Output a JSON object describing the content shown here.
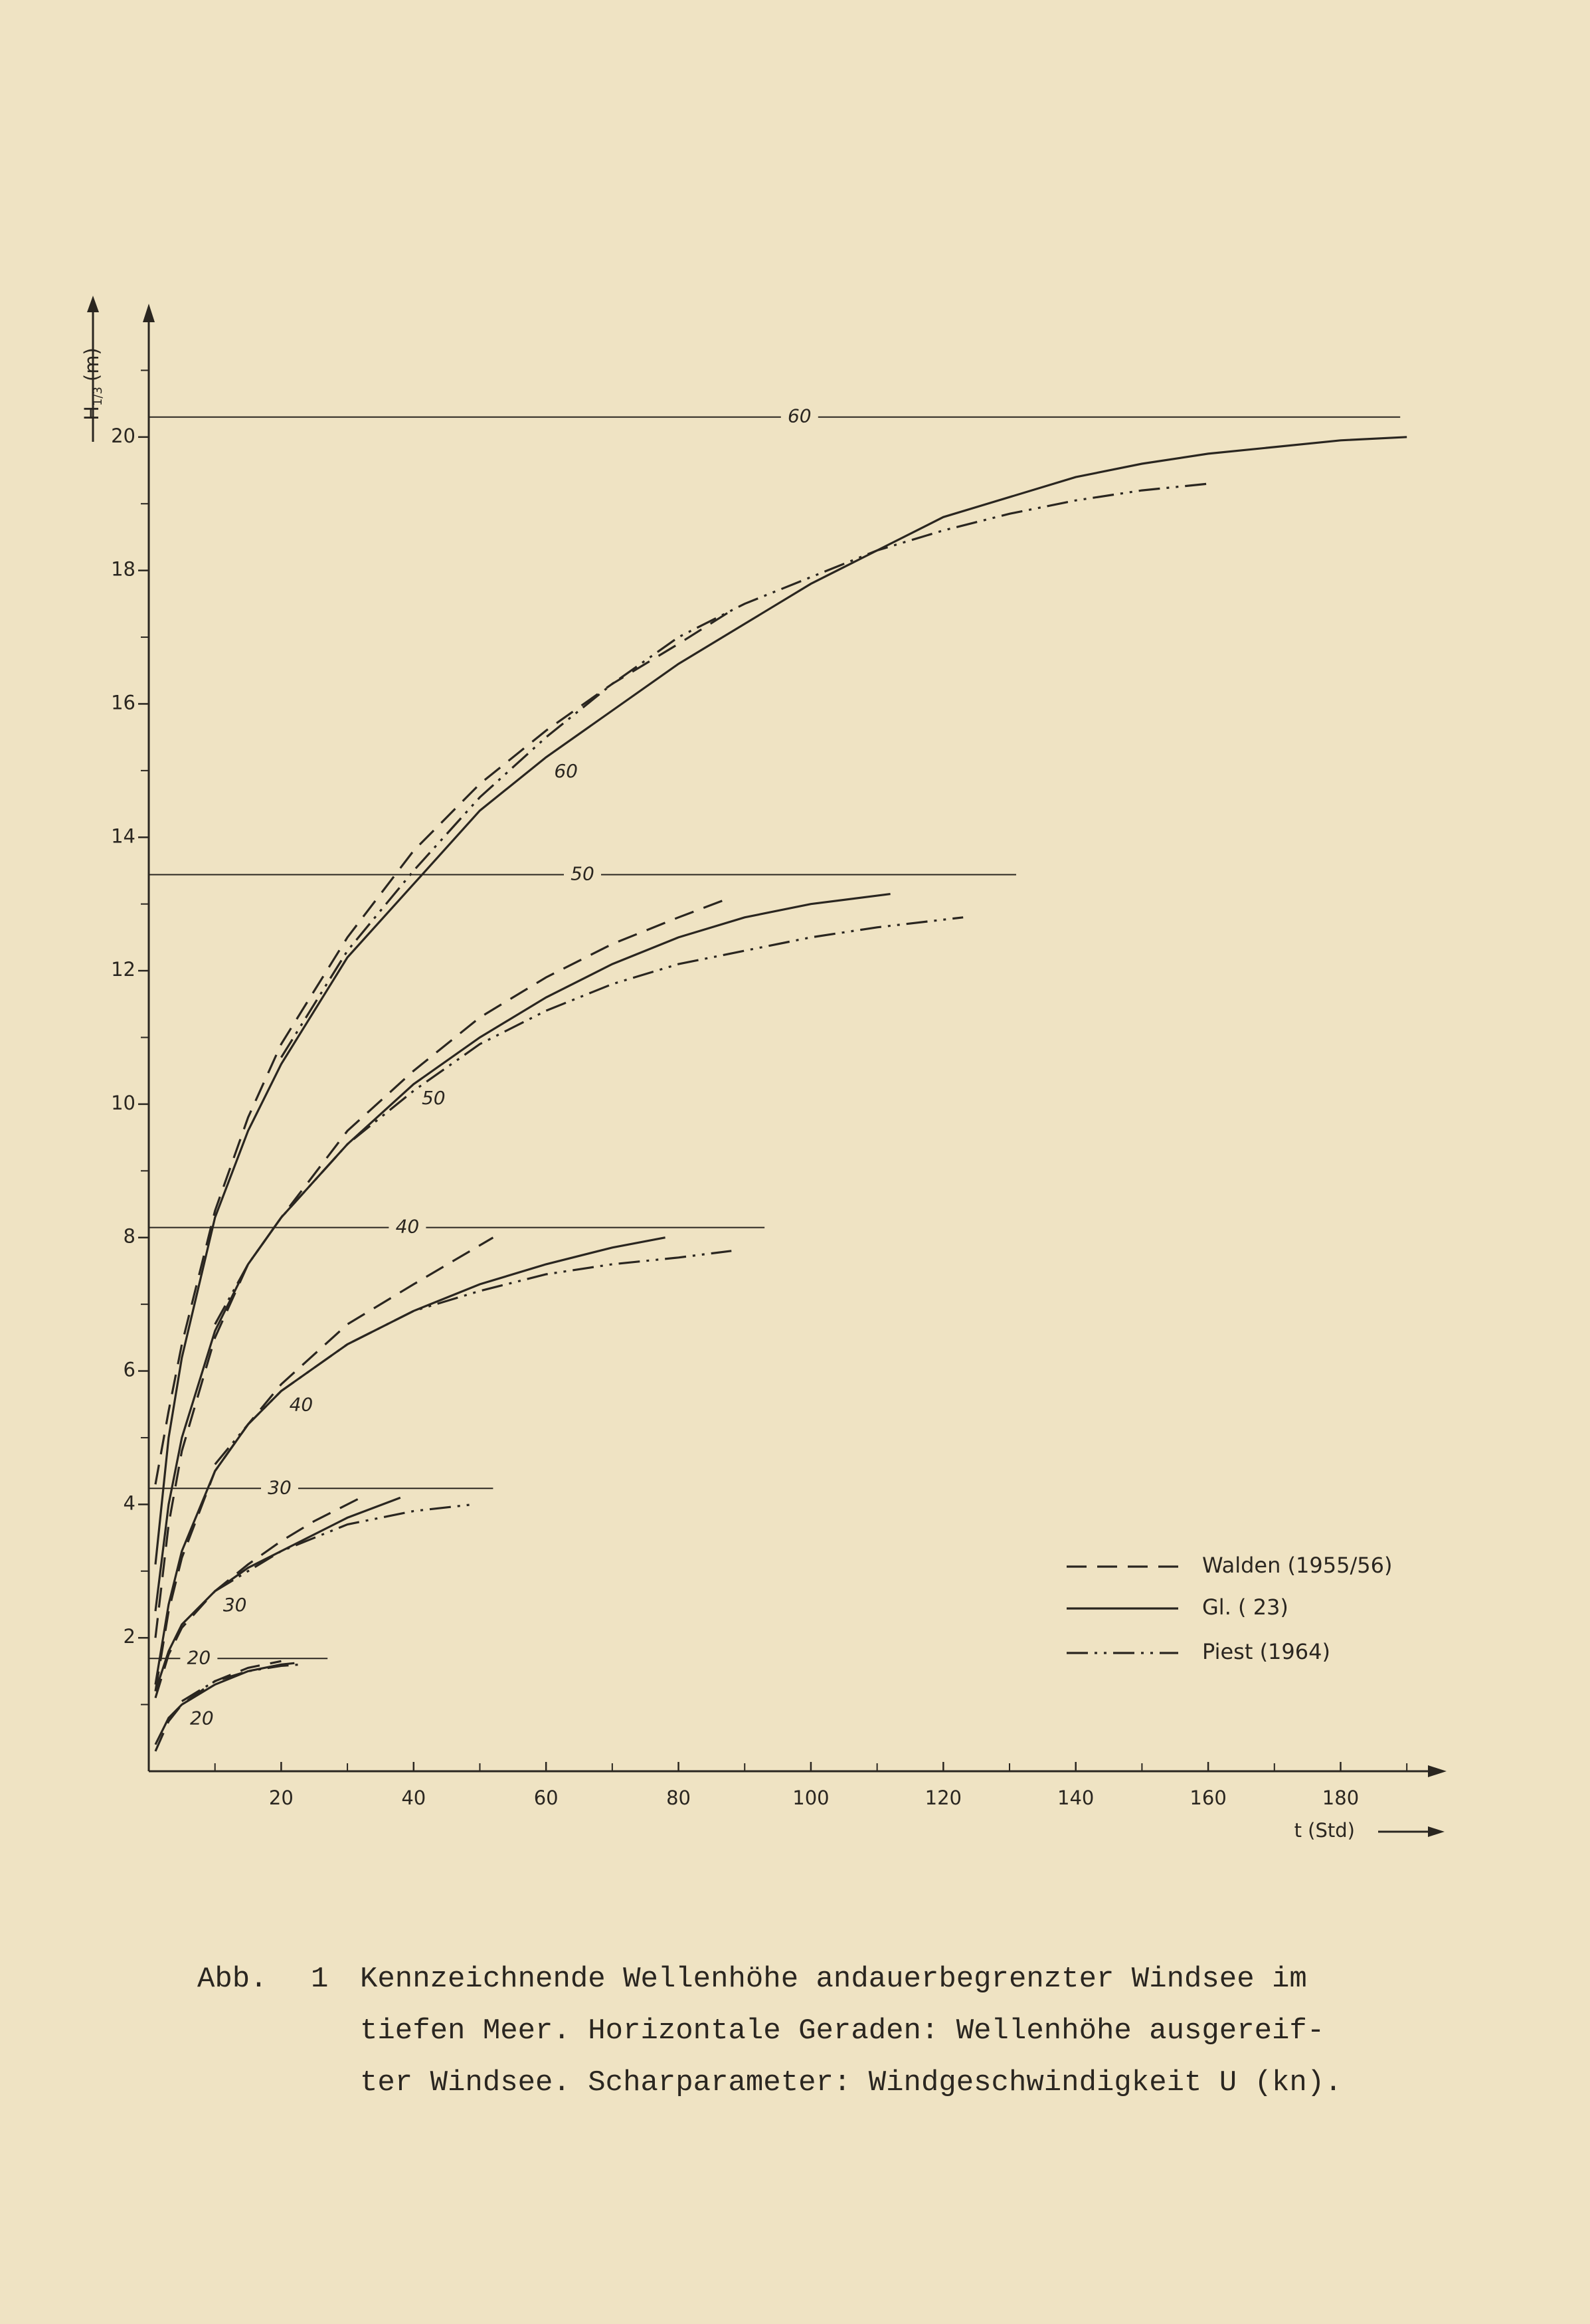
{
  "chart_data": {
    "type": "line",
    "xlabel": "t (Std)",
    "ylabel": {
      "symbol": "H",
      "subscript": "1/3",
      "unit": "(m)"
    },
    "xlim": [
      0,
      196
    ],
    "ylim": [
      0,
      22
    ],
    "xticks": [
      20,
      40,
      60,
      80,
      100,
      120,
      140,
      160,
      180
    ],
    "xticks_minor": [
      10,
      30,
      50,
      70,
      90,
      110,
      130,
      150,
      170,
      190
    ],
    "yticks": [
      2,
      4,
      6,
      8,
      10,
      12,
      14,
      16,
      18,
      20
    ],
    "yticks_minor": [
      1,
      3,
      5,
      7,
      9,
      11,
      13,
      15,
      17,
      19,
      21
    ],
    "wind_speeds": [
      "20",
      "30",
      "40",
      "50",
      "60"
    ],
    "fully_developed": {
      "values": [
        1.69,
        4.24,
        8.15,
        13.44,
        20.3
      ],
      "x_end": [
        27,
        52,
        93,
        131,
        189
      ]
    },
    "series": [
      {
        "name": "Walden (1955/56)",
        "color": "#2a2620",
        "style": "dashed",
        "curves": [
          {
            "x": [
              1,
              3,
              5,
              10,
              15,
              20
            ],
            "values": [
              0.3,
              0.75,
              1.0,
              1.35,
              1.55,
              1.65
            ]
          },
          {
            "x": [
              1,
              3,
              5,
              10,
              15,
              20,
              25,
              32
            ],
            "values": [
              1.1,
              1.75,
              2.15,
              2.7,
              3.1,
              3.45,
              3.75,
              4.1
            ]
          },
          {
            "x": [
              1,
              3,
              5,
              10,
              15,
              20,
              30,
              40,
              52
            ],
            "values": [
              1.2,
              2.4,
              3.2,
              4.5,
              5.2,
              5.8,
              6.7,
              7.3,
              8.0
            ]
          },
          {
            "x": [
              1,
              3,
              5,
              10,
              15,
              20,
              30,
              40,
              50,
              60,
              70,
              80,
              88
            ],
            "values": [
              2.0,
              3.7,
              4.8,
              6.5,
              7.6,
              8.3,
              9.6,
              10.5,
              11.3,
              11.9,
              12.4,
              12.8,
              13.1
            ]
          },
          {
            "x": [
              1,
              3,
              5,
              10,
              15,
              20,
              30,
              40,
              50,
              60,
              70,
              80,
              88
            ],
            "values": [
              4.3,
              5.4,
              6.4,
              8.4,
              9.8,
              10.9,
              12.5,
              13.8,
              14.8,
              15.6,
              16.3,
              16.9,
              17.4
            ]
          }
        ]
      },
      {
        "name": "Gl. ( 23)",
        "color": "#2a2620",
        "style": "solid",
        "curves": [
          {
            "x": [
              1,
              3,
              5,
              10,
              15,
              20,
              22
            ],
            "values": [
              0.4,
              0.8,
              1.0,
              1.3,
              1.5,
              1.6,
              1.62
            ]
          },
          {
            "x": [
              1,
              3,
              5,
              10,
              15,
              20,
              30,
              38
            ],
            "values": [
              1.2,
              1.8,
              2.2,
              2.7,
              3.05,
              3.3,
              3.8,
              4.1
            ]
          },
          {
            "x": [
              1,
              3,
              5,
              10,
              15,
              20,
              30,
              40,
              50,
              60,
              70,
              78
            ],
            "values": [
              1.3,
              2.5,
              3.3,
              4.5,
              5.2,
              5.7,
              6.4,
              6.9,
              7.3,
              7.6,
              7.85,
              8.0
            ]
          },
          {
            "x": [
              1,
              3,
              5,
              10,
              15,
              20,
              30,
              40,
              50,
              60,
              70,
              80,
              90,
              100,
              112
            ],
            "values": [
              2.4,
              4.0,
              5.0,
              6.6,
              7.6,
              8.3,
              9.4,
              10.3,
              11.0,
              11.6,
              12.1,
              12.5,
              12.8,
              13.0,
              13.15
            ]
          },
          {
            "x": [
              1,
              3,
              5,
              10,
              15,
              20,
              30,
              40,
              50,
              60,
              70,
              80,
              90,
              100,
              110,
              120,
              130,
              140,
              150,
              160,
              170,
              180,
              190
            ],
            "values": [
              3.1,
              5.0,
              6.2,
              8.3,
              9.6,
              10.6,
              12.2,
              13.3,
              14.4,
              15.2,
              15.9,
              16.6,
              17.2,
              17.8,
              18.3,
              18.8,
              19.1,
              19.4,
              19.6,
              19.75,
              19.85,
              19.95,
              20.0
            ]
          }
        ]
      },
      {
        "name": "Piest (1964)",
        "color": "#2a2620",
        "style": "dashdot",
        "curves": [
          {
            "x": [
              5,
              10,
              15,
              20,
              23
            ],
            "values": [
              1.05,
              1.35,
              1.5,
              1.58,
              1.6
            ]
          },
          {
            "x": [
              10,
              15,
              20,
              30,
              40,
              49
            ],
            "values": [
              2.7,
              3.0,
              3.3,
              3.7,
              3.9,
              4.0
            ]
          },
          {
            "x": [
              10,
              15,
              20,
              30,
              40,
              50,
              60,
              70,
              80,
              88
            ],
            "values": [
              4.6,
              5.2,
              5.7,
              6.4,
              6.9,
              7.2,
              7.45,
              7.6,
              7.7,
              7.8
            ]
          },
          {
            "x": [
              10,
              15,
              20,
              30,
              40,
              50,
              60,
              70,
              80,
              90,
              100,
              110,
              123
            ],
            "values": [
              6.7,
              7.6,
              8.3,
              9.4,
              10.2,
              10.9,
              11.4,
              11.8,
              12.1,
              12.3,
              12.5,
              12.65,
              12.8
            ]
          },
          {
            "x": [
              20,
              30,
              40,
              50,
              60,
              70,
              80,
              90,
              100,
              110,
              120,
              130,
              140,
              150,
              160
            ],
            "values": [
              10.7,
              12.3,
              13.5,
              14.6,
              15.5,
              16.3,
              17.0,
              17.5,
              17.9,
              18.3,
              18.6,
              18.85,
              19.05,
              19.2,
              19.3
            ]
          }
        ]
      }
    ]
  },
  "caption": {
    "label": "Abb.",
    "number": "1",
    "lines": [
      "Kennzeichnende Wellenhöhe andauerbegrenzter Windsee im",
      "tiefen Meer.  Horizontale Geraden: Wellenhöhe ausgereif-",
      "ter Windsee. Scharparameter: Windgeschwindigkeit U (kn)."
    ]
  }
}
